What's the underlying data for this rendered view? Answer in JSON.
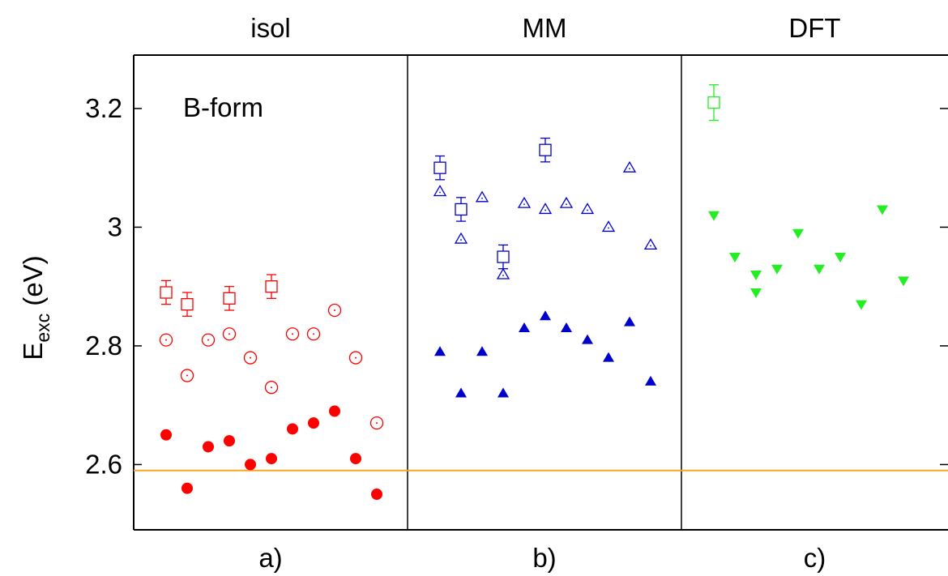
{
  "chart_data": {
    "type": "scatter",
    "ylabel": {
      "main": "E",
      "sub": "exc",
      "unit": " (eV)"
    },
    "yticks": [
      "2.6",
      "2.8",
      "3",
      "3.2"
    ],
    "ylim": [
      2.49,
      3.29
    ],
    "reference_line": {
      "y": 2.59,
      "color": "#f5a623"
    },
    "annotation": "B-form",
    "panels": [
      {
        "title": "isol",
        "label": "a)",
        "color": "#ff0000",
        "x_count": 11,
        "series": [
          {
            "marker": "square-open-errorbar",
            "x": [
              1,
              2,
              4,
              6
            ],
            "y": [
              2.89,
              2.87,
              2.88,
              2.9
            ],
            "err": [
              0.02,
              0.02,
              0.02,
              0.02
            ]
          },
          {
            "marker": "circle-dot-open",
            "x": [
              1,
              2,
              3,
              4,
              5,
              6,
              7,
              8,
              9,
              10,
              11
            ],
            "y": [
              2.81,
              2.75,
              2.81,
              2.82,
              2.78,
              2.73,
              2.82,
              2.82,
              2.86,
              2.78,
              2.67
            ]
          },
          {
            "marker": "circle-filled",
            "x": [
              1,
              2,
              3,
              4,
              5,
              6,
              7,
              8,
              9,
              10,
              11
            ],
            "y": [
              2.65,
              2.56,
              2.63,
              2.64,
              2.6,
              2.61,
              2.66,
              2.67,
              2.69,
              2.61,
              2.55
            ]
          }
        ]
      },
      {
        "title": "MM",
        "label": "b)",
        "color": "#0000cc",
        "x_count": 11,
        "series": [
          {
            "marker": "square-open-errorbar",
            "x": [
              1,
              2,
              4,
              6
            ],
            "y": [
              3.1,
              3.03,
              2.95,
              3.13
            ],
            "err": [
              0.02,
              0.02,
              0.02,
              0.02
            ]
          },
          {
            "marker": "triangle-up-open",
            "x": [
              1,
              2,
              3,
              4,
              5,
              6,
              7,
              8,
              9,
              10,
              11
            ],
            "y": [
              3.06,
              2.98,
              3.05,
              2.92,
              3.04,
              3.03,
              3.04,
              3.03,
              3.0,
              3.1,
              2.97
            ]
          },
          {
            "marker": "triangle-up-filled",
            "x": [
              1,
              2,
              3,
              4,
              5,
              6,
              7,
              8,
              9,
              10,
              11
            ],
            "y": [
              2.79,
              2.72,
              2.79,
              2.72,
              2.83,
              2.85,
              2.83,
              2.81,
              2.78,
              2.84,
              2.74
            ]
          }
        ]
      },
      {
        "title": "DFT",
        "label": "c)",
        "color": "#22ee22",
        "x_count": 11,
        "series": [
          {
            "marker": "square-open-errorbar",
            "x": [
              1
            ],
            "y": [
              3.21
            ],
            "err": [
              0.03
            ]
          },
          {
            "marker": "triangle-down-filled",
            "x": [
              1,
              2,
              3,
              3,
              4,
              5,
              6,
              7,
              8,
              9,
              10
            ],
            "y": [
              3.02,
              2.95,
              2.92,
              2.89,
              2.93,
              2.99,
              2.93,
              2.95,
              2.87,
              3.03,
              2.91
            ]
          }
        ]
      }
    ]
  }
}
